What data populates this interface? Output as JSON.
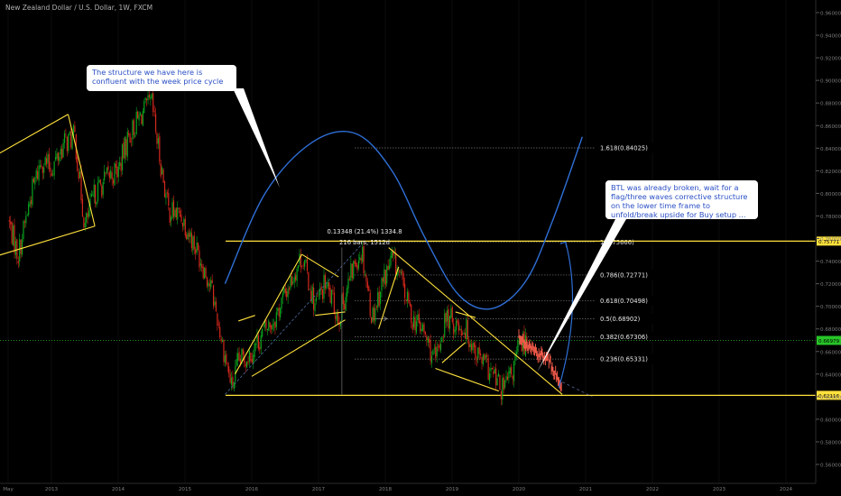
{
  "symbol_title": "New Zealand Dollar / U.S. Dollar, 1W, FXCM",
  "colors": {
    "background": "#000000",
    "bull": "#0aa51e",
    "bear": "#d6281c",
    "projection": "#f25a4a",
    "pattern": "#ffe13c",
    "level": "#ffe13c",
    "cycle": "#2f6fd6",
    "fib_line": "#777777",
    "price_axis_text": "#7c7c7c",
    "current_price": "#27c427"
  },
  "callouts": {
    "cycle_note": "The structure we have here is confluent with the week price cycle",
    "breakout_note": "BTL was already broken, wait for a flag/three waves corrective structure on the lower time frame to unfold/break upside for Buy setup ..."
  },
  "measure": {
    "line1": "0.13348 (21.4%) 1334.8",
    "line2": "216 bars, 1512d"
  },
  "chart_data": {
    "type": "candlestick",
    "title": "New Zealand Dollar / U.S. Dollar, 1W, FXCM",
    "x": {
      "ticks": [
        "May",
        "2013",
        "2014",
        "2015",
        "2016",
        "2017",
        "2018",
        "2019",
        "2020",
        "2021",
        "2022",
        "2023",
        "2024"
      ]
    },
    "y": {
      "ticks": [
        0.96,
        0.94,
        0.92,
        0.9,
        0.88,
        0.86,
        0.84,
        0.82,
        0.8,
        0.78,
        0.76,
        0.74,
        0.72,
        0.7,
        0.68,
        0.66,
        0.64,
        0.62,
        0.6,
        0.58,
        0.56
      ],
      "ylim": [
        0.5475,
        0.9645
      ]
    },
    "price_path": [
      {
        "date": "2012.35",
        "close": 0.777
      },
      {
        "date": "2012.5",
        "close": 0.745
      },
      {
        "date": "2012.7",
        "close": 0.8
      },
      {
        "date": "2012.85",
        "close": 0.83
      },
      {
        "date": "2013.0",
        "close": 0.822
      },
      {
        "date": "2013.2",
        "close": 0.845
      },
      {
        "date": "2013.35",
        "close": 0.85
      },
      {
        "date": "2013.5",
        "close": 0.77
      },
      {
        "date": "2013.65",
        "close": 0.8
      },
      {
        "date": "2013.85",
        "close": 0.815
      },
      {
        "date": "2014.0",
        "close": 0.82
      },
      {
        "date": "2014.15",
        "close": 0.85
      },
      {
        "date": "2014.35",
        "close": 0.87
      },
      {
        "date": "2014.5",
        "close": 0.88
      },
      {
        "date": "2014.6",
        "close": 0.84
      },
      {
        "date": "2014.75",
        "close": 0.785
      },
      {
        "date": "2014.95",
        "close": 0.78
      },
      {
        "date": "2015.1",
        "close": 0.76
      },
      {
        "date": "2015.25",
        "close": 0.74
      },
      {
        "date": "2015.4",
        "close": 0.715
      },
      {
        "date": "2015.55",
        "close": 0.67
      },
      {
        "date": "2015.7",
        "close": 0.628
      },
      {
        "date": "2015.8",
        "close": 0.65
      },
      {
        "date": "2016.0",
        "close": 0.66
      },
      {
        "date": "2016.15",
        "close": 0.675
      },
      {
        "date": "2016.35",
        "close": 0.69
      },
      {
        "date": "2016.6",
        "close": 0.725
      },
      {
        "date": "2016.75",
        "close": 0.745
      },
      {
        "date": "2016.95",
        "close": 0.7
      },
      {
        "date": "2017.1",
        "close": 0.72
      },
      {
        "date": "2017.3",
        "close": 0.69
      },
      {
        "date": "2017.55",
        "close": 0.74
      },
      {
        "date": "2017.65",
        "close": 0.75
      },
      {
        "date": "2017.8",
        "close": 0.69
      },
      {
        "date": "2017.95",
        "close": 0.72
      },
      {
        "date": "2018.1",
        "close": 0.742
      },
      {
        "date": "2018.2",
        "close": 0.73
      },
      {
        "date": "2018.4",
        "close": 0.69
      },
      {
        "date": "2018.55",
        "close": 0.68
      },
      {
        "date": "2018.75",
        "close": 0.65
      },
      {
        "date": "2018.9",
        "close": 0.69
      },
      {
        "date": "2019.05",
        "close": 0.685
      },
      {
        "date": "2019.2",
        "close": 0.68
      },
      {
        "date": "2019.4",
        "close": 0.655
      },
      {
        "date": "2019.6",
        "close": 0.64
      },
      {
        "date": "2019.75",
        "close": 0.625
      },
      {
        "date": "2019.9",
        "close": 0.64
      },
      {
        "date": "2020.0",
        "close": 0.665
      },
      {
        "date": "2020.12",
        "close": 0.67
      }
    ],
    "projection_path": [
      {
        "date": "2020.0",
        "close": 0.676
      },
      {
        "date": "2020.15",
        "close": 0.665
      },
      {
        "date": "2020.3",
        "close": 0.658
      },
      {
        "date": "2020.45",
        "close": 0.652
      },
      {
        "date": "2020.55",
        "close": 0.64
      },
      {
        "date": "2020.65",
        "close": 0.626
      }
    ],
    "levels": [
      {
        "value": 0.62116,
        "label": "0.62116"
      },
      {
        "value": 0.75771,
        "label": "0.75771"
      }
    ],
    "current_price": {
      "value": 0.66979,
      "label": "0.66979"
    },
    "fibonacci": [
      {
        "ratio": "1.618",
        "value": 0.84025,
        "label": "1.618(0.84025)"
      },
      {
        "ratio": "1",
        "value": 0.75666,
        "label": "1(0.75666)"
      },
      {
        "ratio": "0.786",
        "value": 0.72771,
        "label": "0.786(0.72771)"
      },
      {
        "ratio": "0.618",
        "value": 0.70498,
        "label": "0.618(0.70498)"
      },
      {
        "ratio": "0.5",
        "value": 0.68902,
        "label": "0.5(0.68902)"
      },
      {
        "ratio": "0.382",
        "value": 0.67306,
        "label": "0.382(0.67306)"
      },
      {
        "ratio": "0.236",
        "value": 0.65331,
        "label": "0.236(0.65331)"
      }
    ],
    "patterns": [
      {
        "name": "early-channel",
        "lines": [
          [
            [
              "2012.0",
              0.828
            ],
            [
              "2013.25",
              0.87
            ]
          ],
          [
            [
              "2012.15",
              0.744
            ],
            [
              "2013.65",
              0.771
            ]
          ],
          [
            [
              "2012.0",
              0.828
            ],
            [
              "2012.15",
              0.744
            ]
          ],
          [
            [
              "2013.25",
              0.87
            ],
            [
              "2013.65",
              0.771
            ]
          ]
        ]
      },
      {
        "name": "rising-wedge",
        "lines": [
          [
            [
              "2015.75",
              0.64
            ],
            [
              "2016.75",
              0.746
            ]
          ],
          [
            [
              "2016.0",
              0.638
            ],
            [
              "2017.4",
              0.688
            ]
          ],
          [
            [
              "2016.75",
              0.746
            ],
            [
              "2017.3",
              0.726
            ]
          ]
        ]
      },
      {
        "name": "small-pennant",
        "lines": [
          [
            [
              "2015.8",
              0.687
            ],
            [
              "2016.05",
              0.692
            ]
          ]
        ]
      },
      {
        "name": "wedge-top",
        "lines": [
          [
            [
              "2016.95",
              0.692
            ],
            [
              "2017.4",
              0.695
            ]
          ]
        ]
      },
      {
        "name": "falling-wedge",
        "lines": [
          [
            [
              "2018.05",
              0.752
            ],
            [
              "2020.65",
              0.622
            ]
          ],
          [
            [
              "2018.75",
              0.645
            ],
            [
              "2019.7",
              0.625
            ]
          ]
        ]
      },
      {
        "name": "flag-2018",
        "lines": [
          [
            [
              "2017.9",
              0.68
            ],
            [
              "2018.2",
              0.735
            ]
          ]
        ]
      },
      {
        "name": "flag-2019",
        "lines": [
          [
            [
              "2018.85",
              0.65
            ],
            [
              "2019.2",
              0.668
            ]
          ],
          [
            [
              "2019.05",
              0.695
            ],
            [
              "2019.35",
              0.69
            ]
          ]
        ]
      }
    ],
    "measure_segment": [
      [
        "2015.6",
        0.622
      ],
      [
        "2017.65",
        0.755
      ]
    ],
    "cycle_curve": [
      [
        "2015.6",
        0.72
      ],
      [
        "2016.2",
        0.8
      ],
      [
        "2016.9",
        0.845
      ],
      [
        "2017.55",
        0.853
      ],
      [
        "2018.1",
        0.82
      ],
      [
        "2018.6",
        0.76
      ],
      [
        "2019.1",
        0.71
      ],
      [
        "2019.6",
        0.698
      ],
      [
        "2020.1",
        0.722
      ],
      [
        "2020.5",
        0.775
      ],
      [
        "2020.95",
        0.85
      ]
    ],
    "forecast_arrow": [
      [
        "2020.6",
        0.628
      ],
      [
        "2020.95",
        0.7
      ],
      [
        "2020.7",
        0.757
      ]
    ]
  }
}
